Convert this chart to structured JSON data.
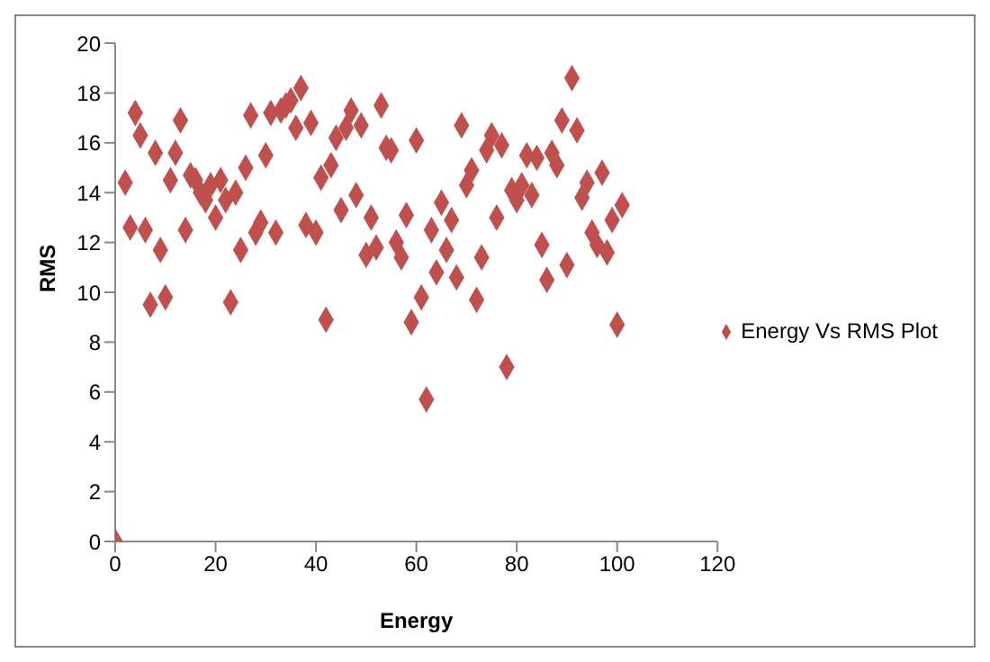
{
  "chart_data": {
    "type": "scatter",
    "xlabel": "Energy",
    "ylabel": "RMS",
    "x": [
      0,
      2,
      3,
      4,
      5,
      6,
      7,
      8,
      9,
      10,
      11,
      12,
      13,
      14,
      15,
      16,
      17,
      18,
      19,
      20,
      21,
      22,
      23,
      24,
      25,
      26,
      27,
      28,
      29,
      30,
      31,
      32,
      33,
      34,
      35,
      36,
      37,
      38,
      39,
      40,
      41,
      42,
      43,
      44,
      45,
      46,
      47,
      48,
      49,
      50,
      51,
      52,
      53,
      54,
      55,
      56,
      57,
      58,
      59,
      60,
      61,
      62,
      63,
      64,
      65,
      66,
      67,
      68,
      69,
      70,
      71,
      72,
      73,
      74,
      75,
      76,
      77,
      78,
      79,
      80,
      81,
      82,
      83,
      84,
      85,
      86,
      87,
      88,
      89,
      90,
      91,
      92,
      93,
      94,
      95,
      96,
      97,
      98,
      99,
      100,
      101
    ],
    "series": [
      {
        "name": "Energy Vs RMS Plot",
        "color": "#c0504d",
        "values": [
          0,
          14.4,
          12.6,
          17.2,
          16.3,
          12.5,
          9.5,
          15.6,
          11.7,
          9.8,
          14.5,
          15.6,
          16.9,
          12.5,
          14.7,
          14.5,
          14.0,
          13.7,
          14.3,
          13.0,
          14.5,
          13.7,
          9.6,
          14.0,
          11.7,
          15.0,
          17.1,
          12.4,
          12.8,
          15.5,
          17.2,
          12.4,
          17.3,
          17.5,
          17.7,
          16.6,
          18.2,
          12.7,
          16.8,
          12.4,
          14.6,
          8.9,
          15.1,
          16.2,
          13.3,
          16.6,
          17.3,
          13.9,
          16.7,
          11.5,
          13.0,
          11.8,
          17.5,
          15.8,
          15.7,
          12.0,
          11.4,
          13.1,
          8.8,
          16.1,
          9.8,
          5.7,
          12.5,
          10.8,
          13.6,
          11.7,
          12.9,
          10.6,
          16.7,
          14.3,
          14.9,
          9.7,
          11.4,
          15.7,
          16.3,
          13.0,
          15.9,
          7.0,
          14.1,
          13.7,
          14.3,
          15.5,
          13.9,
          15.4,
          11.9,
          10.5,
          15.6,
          15.1,
          16.9,
          11.1,
          18.6,
          16.5,
          13.8,
          14.4,
          12.4,
          11.9,
          14.8,
          11.6,
          12.9,
          8.7,
          13.5
        ]
      }
    ],
    "xlim": [
      0,
      120
    ],
    "xticks": [
      0,
      20,
      40,
      60,
      80,
      100,
      120
    ],
    "ylim": [
      0,
      20
    ],
    "yticks": [
      0,
      2,
      4,
      6,
      8,
      10,
      12,
      14,
      16,
      18,
      20
    ],
    "marker": "diamond",
    "legend": "right"
  }
}
